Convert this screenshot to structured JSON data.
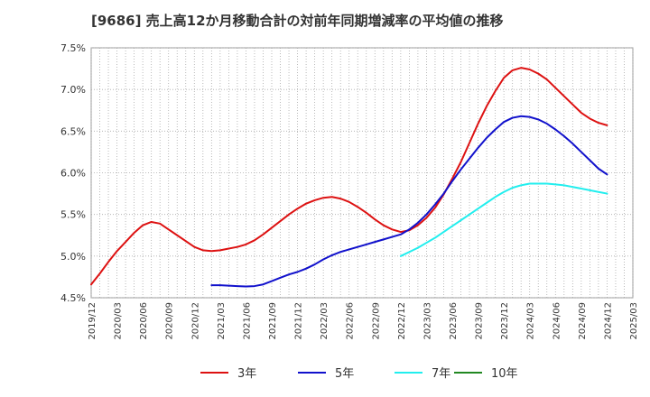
{
  "chart_data": {
    "type": "line",
    "title": "[9686]  売上高12か月移動合計の対前年同期増減率の平均値の推移",
    "xlabel": "",
    "ylabel": "",
    "ylim": [
      4.5,
      7.5
    ],
    "y_ticks": [
      "4.5%",
      "5.0%",
      "5.5%",
      "6.0%",
      "6.5%",
      "7.0%",
      "7.5%"
    ],
    "x_ticks": [
      "2019/12",
      "2020/03",
      "2020/06",
      "2020/09",
      "2020/12",
      "2021/03",
      "2021/06",
      "2021/09",
      "2021/12",
      "2022/03",
      "2022/06",
      "2022/09",
      "2022/12",
      "2023/03",
      "2023/06",
      "2023/09",
      "2023/12",
      "2024/03",
      "2024/06",
      "2024/09",
      "2024/12",
      "2025/03"
    ],
    "grid": true,
    "legend": "bottom",
    "series": [
      {
        "name": "3年",
        "color": "#dd1111",
        "points": [
          [
            "2019/12",
            4.66
          ],
          [
            "2020/01",
            4.79
          ],
          [
            "2020/02",
            4.93
          ],
          [
            "2020/03",
            5.06
          ],
          [
            "2020/04",
            5.17
          ],
          [
            "2020/05",
            5.28
          ],
          [
            "2020/06",
            5.37
          ],
          [
            "2020/07",
            5.41
          ],
          [
            "2020/08",
            5.39
          ],
          [
            "2020/09",
            5.32
          ],
          [
            "2020/10",
            5.25
          ],
          [
            "2020/11",
            5.18
          ],
          [
            "2020/12",
            5.11
          ],
          [
            "2021/01",
            5.07
          ],
          [
            "2021/02",
            5.06
          ],
          [
            "2021/03",
            5.07
          ],
          [
            "2021/04",
            5.09
          ],
          [
            "2021/05",
            5.11
          ],
          [
            "2021/06",
            5.14
          ],
          [
            "2021/07",
            5.19
          ],
          [
            "2021/08",
            5.26
          ],
          [
            "2021/09",
            5.34
          ],
          [
            "2021/10",
            5.42
          ],
          [
            "2021/11",
            5.5
          ],
          [
            "2021/12",
            5.57
          ],
          [
            "2022/01",
            5.63
          ],
          [
            "2022/02",
            5.67
          ],
          [
            "2022/03",
            5.7
          ],
          [
            "2022/04",
            5.71
          ],
          [
            "2022/05",
            5.69
          ],
          [
            "2022/06",
            5.65
          ],
          [
            "2022/07",
            5.59
          ],
          [
            "2022/08",
            5.52
          ],
          [
            "2022/09",
            5.44
          ],
          [
            "2022/10",
            5.37
          ],
          [
            "2022/11",
            5.32
          ],
          [
            "2022/12",
            5.29
          ],
          [
            "2023/01",
            5.31
          ],
          [
            "2023/02",
            5.37
          ],
          [
            "2023/03",
            5.46
          ],
          [
            "2023/04",
            5.58
          ],
          [
            "2023/05",
            5.74
          ],
          [
            "2023/06",
            5.93
          ],
          [
            "2023/07",
            6.13
          ],
          [
            "2023/08",
            6.36
          ],
          [
            "2023/09",
            6.59
          ],
          [
            "2023/10",
            6.8
          ],
          [
            "2023/11",
            6.98
          ],
          [
            "2023/12",
            7.14
          ],
          [
            "2024/01",
            7.23
          ],
          [
            "2024/02",
            7.26
          ],
          [
            "2024/03",
            7.24
          ],
          [
            "2024/04",
            7.19
          ],
          [
            "2024/05",
            7.12
          ],
          [
            "2024/06",
            7.02
          ],
          [
            "2024/07",
            6.92
          ],
          [
            "2024/08",
            6.82
          ],
          [
            "2024/09",
            6.72
          ],
          [
            "2024/10",
            6.65
          ],
          [
            "2024/11",
            6.6
          ],
          [
            "2024/12",
            6.57
          ]
        ]
      },
      {
        "name": "5年",
        "color": "#1111cc",
        "points": [
          [
            "2021/02",
            4.65
          ],
          [
            "2021/03",
            4.65
          ],
          [
            "2021/04",
            4.645
          ],
          [
            "2021/05",
            4.64
          ],
          [
            "2021/06",
            4.635
          ],
          [
            "2021/07",
            4.64
          ],
          [
            "2021/08",
            4.66
          ],
          [
            "2021/09",
            4.7
          ],
          [
            "2021/10",
            4.74
          ],
          [
            "2021/11",
            4.78
          ],
          [
            "2021/12",
            4.81
          ],
          [
            "2022/01",
            4.85
          ],
          [
            "2022/02",
            4.9
          ],
          [
            "2022/03",
            4.96
          ],
          [
            "2022/04",
            5.01
          ],
          [
            "2022/05",
            5.05
          ],
          [
            "2022/06",
            5.08
          ],
          [
            "2022/07",
            5.11
          ],
          [
            "2022/08",
            5.14
          ],
          [
            "2022/09",
            5.17
          ],
          [
            "2022/10",
            5.2
          ],
          [
            "2022/11",
            5.23
          ],
          [
            "2022/12",
            5.26
          ],
          [
            "2023/01",
            5.32
          ],
          [
            "2023/02",
            5.4
          ],
          [
            "2023/03",
            5.5
          ],
          [
            "2023/04",
            5.62
          ],
          [
            "2023/05",
            5.75
          ],
          [
            "2023/06",
            5.9
          ],
          [
            "2023/07",
            6.04
          ],
          [
            "2023/08",
            6.17
          ],
          [
            "2023/09",
            6.3
          ],
          [
            "2023/10",
            6.42
          ],
          [
            "2023/11",
            6.52
          ],
          [
            "2023/12",
            6.61
          ],
          [
            "2024/01",
            6.66
          ],
          [
            "2024/02",
            6.68
          ],
          [
            "2024/03",
            6.67
          ],
          [
            "2024/04",
            6.64
          ],
          [
            "2024/05",
            6.59
          ],
          [
            "2024/06",
            6.52
          ],
          [
            "2024/07",
            6.44
          ],
          [
            "2024/08",
            6.35
          ],
          [
            "2024/09",
            6.25
          ],
          [
            "2024/10",
            6.15
          ],
          [
            "2024/11",
            6.05
          ],
          [
            "2024/12",
            5.98
          ]
        ]
      },
      {
        "name": "7年",
        "color": "#22eeee",
        "points": [
          [
            "2022/12",
            5.0
          ],
          [
            "2023/01",
            5.05
          ],
          [
            "2023/02",
            5.1
          ],
          [
            "2023/03",
            5.16
          ],
          [
            "2023/04",
            5.22
          ],
          [
            "2023/05",
            5.29
          ],
          [
            "2023/06",
            5.36
          ],
          [
            "2023/07",
            5.43
          ],
          [
            "2023/08",
            5.5
          ],
          [
            "2023/09",
            5.57
          ],
          [
            "2023/10",
            5.64
          ],
          [
            "2023/11",
            5.71
          ],
          [
            "2023/12",
            5.77
          ],
          [
            "2024/01",
            5.82
          ],
          [
            "2024/02",
            5.85
          ],
          [
            "2024/03",
            5.87
          ],
          [
            "2024/04",
            5.87
          ],
          [
            "2024/05",
            5.87
          ],
          [
            "2024/06",
            5.86
          ],
          [
            "2024/07",
            5.85
          ],
          [
            "2024/08",
            5.83
          ],
          [
            "2024/09",
            5.81
          ],
          [
            "2024/10",
            5.79
          ],
          [
            "2024/11",
            5.77
          ],
          [
            "2024/12",
            5.75
          ]
        ]
      },
      {
        "name": "10年",
        "color": "#228822",
        "points": []
      }
    ]
  }
}
